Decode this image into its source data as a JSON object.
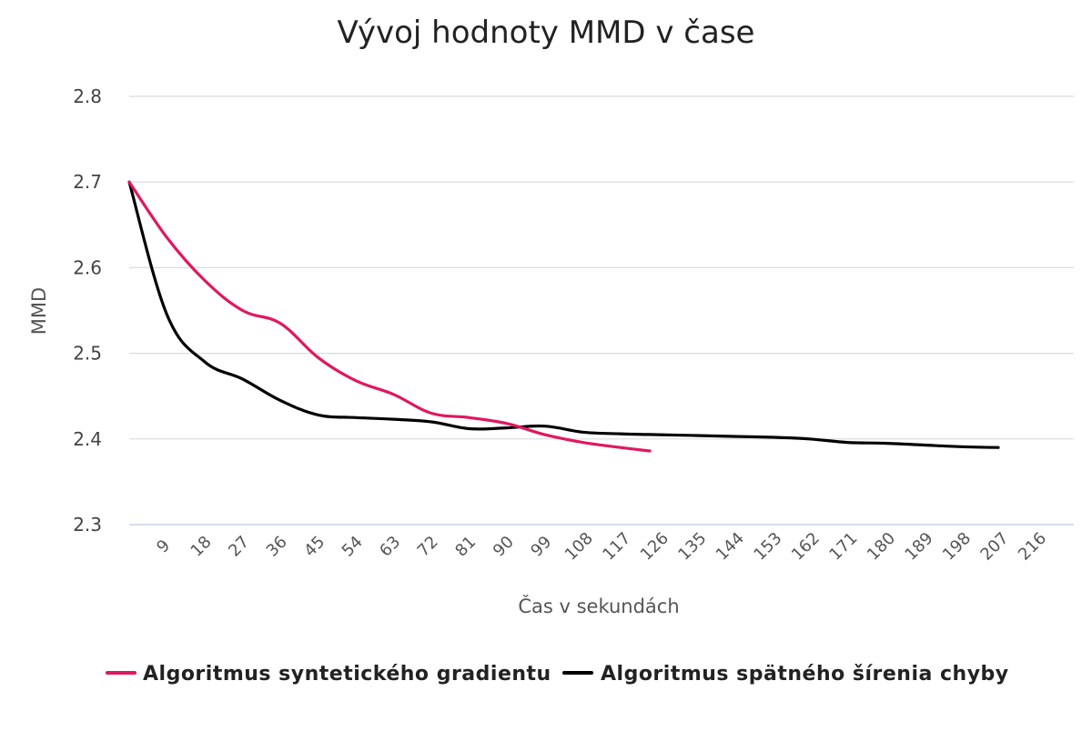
{
  "chart_data": {
    "type": "line",
    "title": "Vývoj hodnoty MMD v čase",
    "xlabel": "Čas v sekundách",
    "ylabel": "MMD",
    "ylim": [
      2.3,
      2.8
    ],
    "yticks": [
      "2.3",
      "2.4",
      "2.5",
      "2.6",
      "2.7",
      "2.8"
    ],
    "xlim": [
      0,
      225
    ],
    "xticks": [
      "9",
      "18",
      "27",
      "36",
      "45",
      "54",
      "63",
      "72",
      "81",
      "90",
      "99",
      "108",
      "117",
      "126",
      "135",
      "144",
      "153",
      "162",
      "171",
      "180",
      "189",
      "198",
      "207",
      "216"
    ],
    "grid": true,
    "legend_position": "bottom",
    "series": [
      {
        "name": "Algoritmus syntetického gradientu",
        "color": "#e0185f",
        "x": [
          0,
          9,
          18,
          27,
          36,
          45,
          54,
          63,
          72,
          81,
          90,
          99,
          108,
          117,
          124
        ],
        "y": [
          2.7,
          2.635,
          2.585,
          2.55,
          2.535,
          2.495,
          2.468,
          2.452,
          2.43,
          2.425,
          2.418,
          2.405,
          2.396,
          2.39,
          2.386
        ]
      },
      {
        "name": "Algoritmus spätného šírenia chyby",
        "color": "#000000",
        "x": [
          0,
          9,
          18,
          27,
          36,
          45,
          54,
          63,
          72,
          81,
          90,
          99,
          108,
          117,
          126,
          135,
          144,
          153,
          162,
          171,
          180,
          189,
          198,
          207
        ],
        "y": [
          2.7,
          2.545,
          2.49,
          2.47,
          2.445,
          2.428,
          2.425,
          2.423,
          2.42,
          2.412,
          2.413,
          2.415,
          2.408,
          2.406,
          2.405,
          2.404,
          2.403,
          2.402,
          2.4,
          2.396,
          2.395,
          2.393,
          2.391,
          2.39
        ]
      }
    ]
  }
}
